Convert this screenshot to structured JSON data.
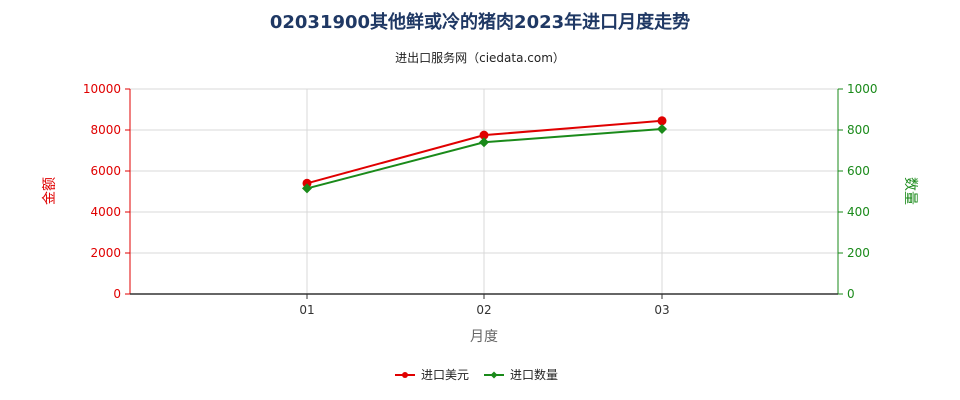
{
  "chart_data": {
    "type": "line",
    "title": "02031900其他鲜或冷的猪肉2023年进口月度走势",
    "subtitle": "进出口服务网（ciedata.com）",
    "xlabel": "月度",
    "ylabel_left": "金额",
    "ylabel_right": "数量",
    "categories": [
      "01",
      "02",
      "03"
    ],
    "ylim_left": [
      0,
      10000
    ],
    "ylim_right": [
      0,
      1000
    ],
    "yticks_left": [
      "0",
      "2000",
      "4000",
      "6000",
      "8000",
      "10000"
    ],
    "yticks_right": [
      "0",
      "200",
      "400",
      "600",
      "800",
      "1000"
    ],
    "grid": true,
    "legend_position": "bottom",
    "series": [
      {
        "name": "进口美元",
        "axis": "left",
        "color": "#e00000",
        "marker": "circle",
        "values": [
          5400,
          7750,
          8450
        ]
      },
      {
        "name": "进口数量",
        "axis": "right",
        "color": "#1a8a1a",
        "marker": "diamond",
        "values": [
          515,
          740,
          805
        ]
      }
    ]
  }
}
